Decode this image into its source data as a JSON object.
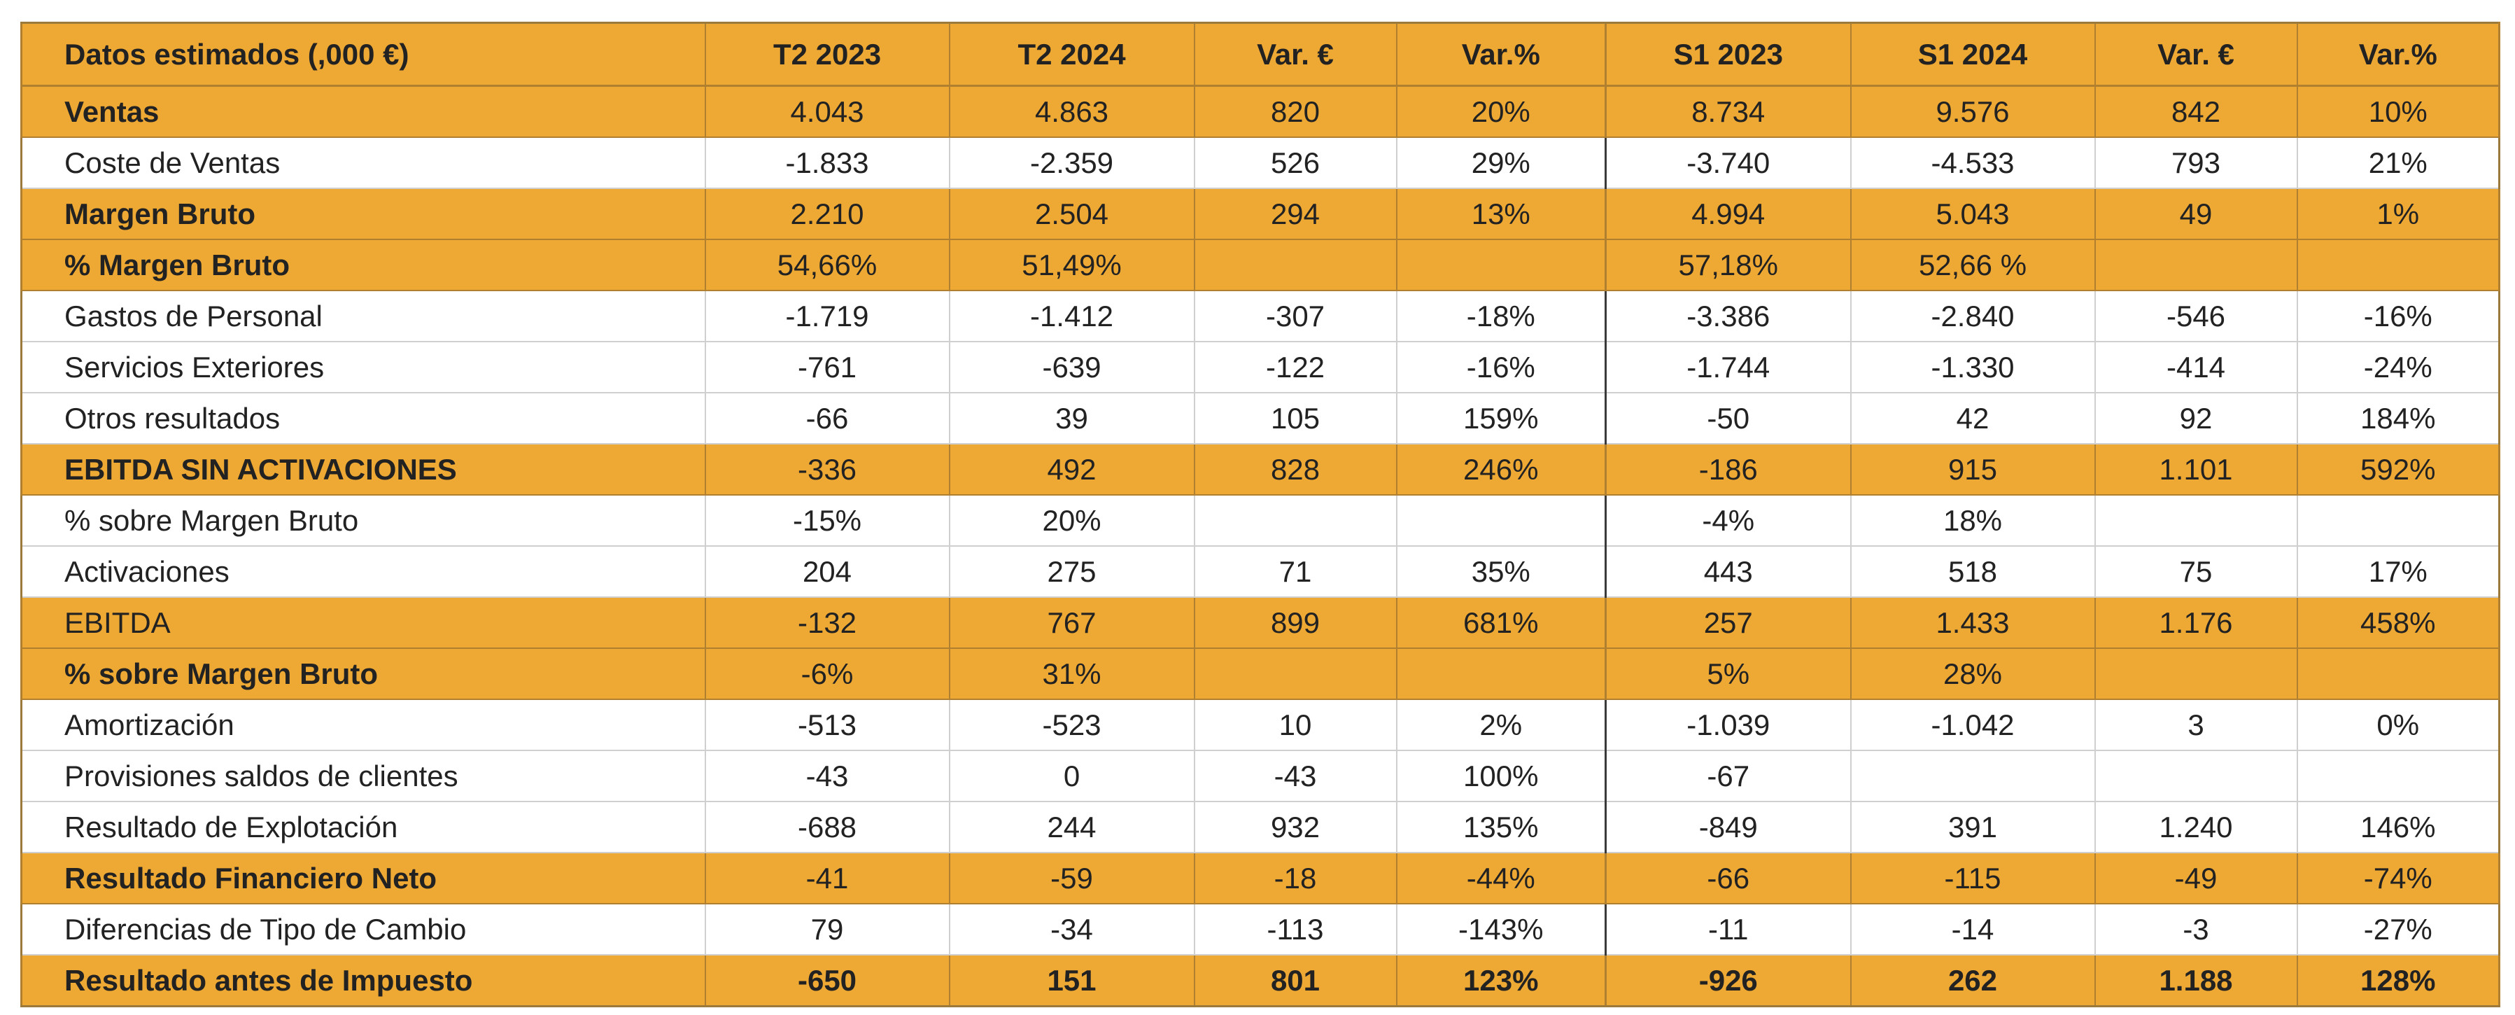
{
  "table": {
    "headers": [
      "Datos estimados (,000 €)",
      "T2 2023",
      "T2 2024",
      "Var. €",
      "Var.%",
      "S1 2023",
      "S1 2024",
      "Var. €",
      "Var.%"
    ],
    "rows": [
      {
        "cells": [
          "Ventas",
          "4.043",
          "4.863",
          "820",
          "20%",
          "8.734",
          "9.576",
          "842",
          "10%"
        ],
        "highlight": true,
        "bold": "label"
      },
      {
        "cells": [
          "Coste de Ventas",
          "-1.833",
          "-2.359",
          "526",
          "29%",
          "-3.740",
          "-4.533",
          "793",
          "21%"
        ],
        "highlight": false,
        "bold": "none"
      },
      {
        "cells": [
          "Margen Bruto",
          "2.210",
          "2.504",
          "294",
          "13%",
          "4.994",
          "5.043",
          "49",
          "1%"
        ],
        "highlight": true,
        "bold": "label"
      },
      {
        "cells": [
          "% Margen Bruto",
          "54,66%",
          "51,49%",
          "",
          "",
          "57,18%",
          "52,66 %",
          "",
          ""
        ],
        "highlight": true,
        "bold": "label"
      },
      {
        "cells": [
          "Gastos de Personal",
          "-1.719",
          "-1.412",
          "-307",
          "-18%",
          "-3.386",
          "-2.840",
          "-546",
          "-16%"
        ],
        "highlight": false,
        "bold": "none"
      },
      {
        "cells": [
          "Servicios Exteriores",
          "-761",
          "-639",
          "-122",
          "-16%",
          "-1.744",
          "-1.330",
          "-414",
          "-24%"
        ],
        "highlight": false,
        "bold": "none"
      },
      {
        "cells": [
          "Otros resultados",
          "-66",
          "39",
          "105",
          "159%",
          "-50",
          "42",
          "92",
          "184%"
        ],
        "highlight": false,
        "bold": "none"
      },
      {
        "cells": [
          "EBITDA SIN ACTIVACIONES",
          "-336",
          "492",
          "828",
          "246%",
          "-186",
          "915",
          "1.101",
          "592%"
        ],
        "highlight": true,
        "bold": "label"
      },
      {
        "cells": [
          "% sobre Margen Bruto",
          "-15%",
          "20%",
          "",
          "",
          "-4%",
          "18%",
          "",
          ""
        ],
        "highlight": false,
        "bold": "none"
      },
      {
        "cells": [
          "Activaciones",
          "204",
          "275",
          "71",
          "35%",
          "443",
          "518",
          "75",
          "17%"
        ],
        "highlight": false,
        "bold": "none"
      },
      {
        "cells": [
          "EBITDA",
          "-132",
          "767",
          "899",
          "681%",
          "257",
          "1.433",
          "1.176",
          "458%"
        ],
        "highlight": true,
        "bold": "none"
      },
      {
        "cells": [
          "% sobre Margen Bruto",
          "-6%",
          "31%",
          "",
          "",
          "5%",
          "28%",
          "",
          ""
        ],
        "highlight": true,
        "bold": "label"
      },
      {
        "cells": [
          "Amortización",
          "-513",
          "-523",
          "10",
          "2%",
          "-1.039",
          "-1.042",
          "3",
          "0%"
        ],
        "highlight": false,
        "bold": "none"
      },
      {
        "cells": [
          "Provisiones saldos de clientes",
          "-43",
          "0",
          "-43",
          "100%",
          "-67",
          "",
          "",
          ""
        ],
        "highlight": false,
        "bold": "none"
      },
      {
        "cells": [
          "Resultado de Explotación",
          "-688",
          "244",
          "932",
          "135%",
          "-849",
          "391",
          "1.240",
          "146%"
        ],
        "highlight": false,
        "bold": "none"
      },
      {
        "cells": [
          "Resultado Financiero Neto",
          "-41",
          "-59",
          "-18",
          "-44%",
          "-66",
          "-115",
          "-49",
          "-74%"
        ],
        "highlight": true,
        "bold": "label"
      },
      {
        "cells": [
          "Diferencias de Tipo de Cambio",
          "79",
          "-34",
          "-113",
          "-143%",
          "-11",
          "-14",
          "-3",
          "-27%"
        ],
        "highlight": false,
        "bold": "none"
      },
      {
        "cells": [
          "Resultado antes de Impuesto",
          "-650",
          "151",
          "801",
          "123%",
          "-926",
          "262",
          "1.188",
          "128%"
        ],
        "highlight": true,
        "bold": "all"
      }
    ]
  },
  "colors": {
    "highlight": "#eea934",
    "text": "#222222",
    "grid": "#cfcfcf"
  }
}
